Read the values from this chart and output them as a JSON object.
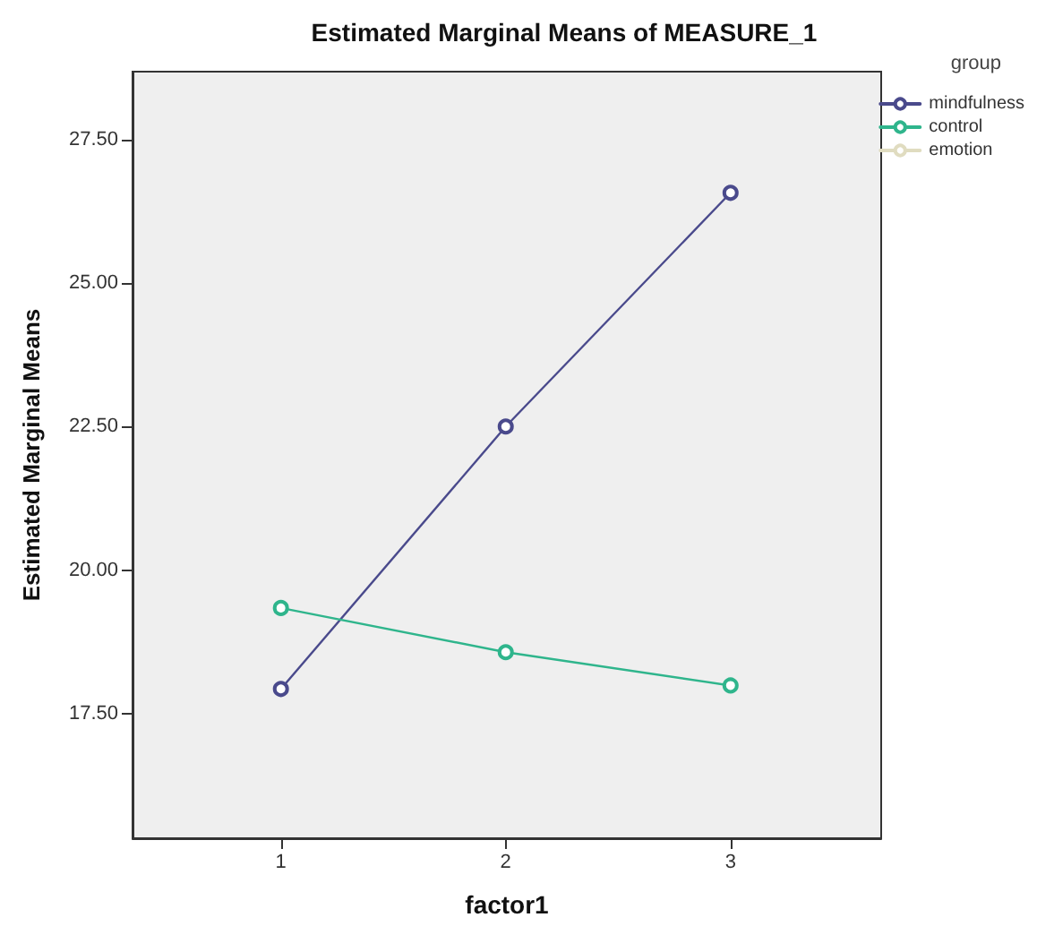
{
  "chart_data": {
    "type": "line",
    "title": "Estimated Marginal Means of MEASURE_1",
    "xlabel": "factor1",
    "ylabel": "Estimated Marginal Means",
    "legend_title": "group",
    "x": [
      1,
      2,
      3
    ],
    "series": [
      {
        "name": "mindfulness",
        "color": "#4a4a8c",
        "values": [
          17.93,
          22.5,
          26.57
        ]
      },
      {
        "name": "control",
        "color": "#2fb58c",
        "values": [
          19.34,
          18.57,
          17.99
        ]
      },
      {
        "name": "emotion",
        "color": "#e0dcc0",
        "values": [
          null,
          null,
          null
        ]
      }
    ],
    "xlim": [
      0.34,
      3.67
    ],
    "xticks": [
      1,
      2,
      3
    ],
    "ylim": [
      15.33,
      28.68
    ],
    "yticks": [
      {
        "value": 17.5,
        "label": "17.50"
      },
      {
        "value": 20,
        "label": "20.00"
      },
      {
        "value": 22.5,
        "label": "22.50"
      },
      {
        "value": 25,
        "label": "25.00"
      },
      {
        "value": 27.5,
        "label": "27.50"
      }
    ],
    "grid": false,
    "legend": "top right",
    "marker": "circle",
    "line_style": "solid"
  }
}
